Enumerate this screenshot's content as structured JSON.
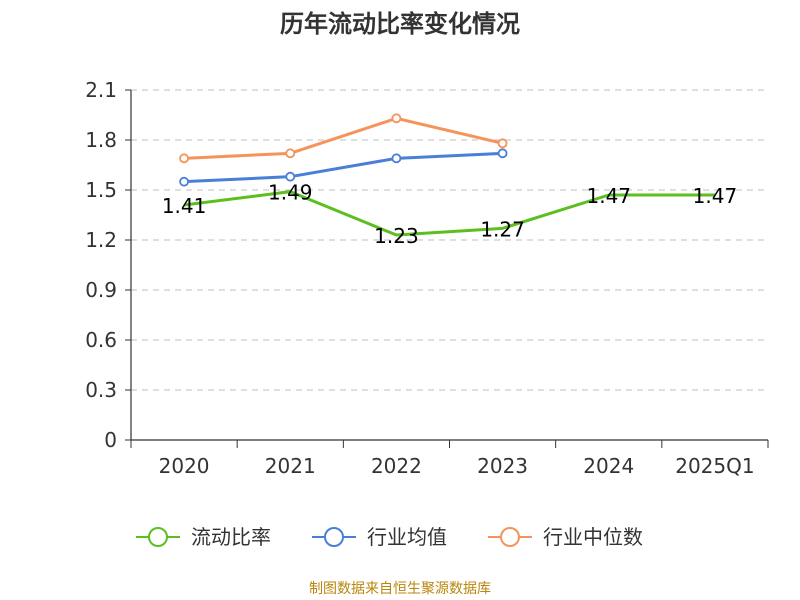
{
  "title": "历年流动比率变化情况",
  "source": "制图数据来自恒生聚源数据库",
  "chart_data": {
    "type": "line",
    "title": "历年流动比率变化情况",
    "categories": [
      "2020",
      "2021",
      "2022",
      "2023",
      "2024",
      "2025Q1"
    ],
    "ylim": [
      0,
      2.1
    ],
    "yticks": [
      "0",
      "0.3",
      "0.6",
      "0.9",
      "1.2",
      "1.5",
      "1.8",
      "2.1"
    ],
    "grid": true,
    "legend_position": "bottom",
    "series": [
      {
        "name": "流动比率",
        "color": "#5cbf1f",
        "values": [
          1.41,
          1.49,
          1.23,
          1.27,
          1.47,
          1.47
        ],
        "labels": [
          "1.41",
          "1.49",
          "1.23",
          "1.27",
          "1.47",
          "1.47"
        ],
        "markers": false
      },
      {
        "name": "行业均值",
        "color": "#4a7fd8",
        "values": [
          1.55,
          1.58,
          1.69,
          1.72,
          null,
          null
        ],
        "markers": true
      },
      {
        "name": "行业中位数",
        "color": "#f5935a",
        "values": [
          1.69,
          1.72,
          1.93,
          1.78,
          null,
          null
        ],
        "markers": true
      }
    ]
  }
}
